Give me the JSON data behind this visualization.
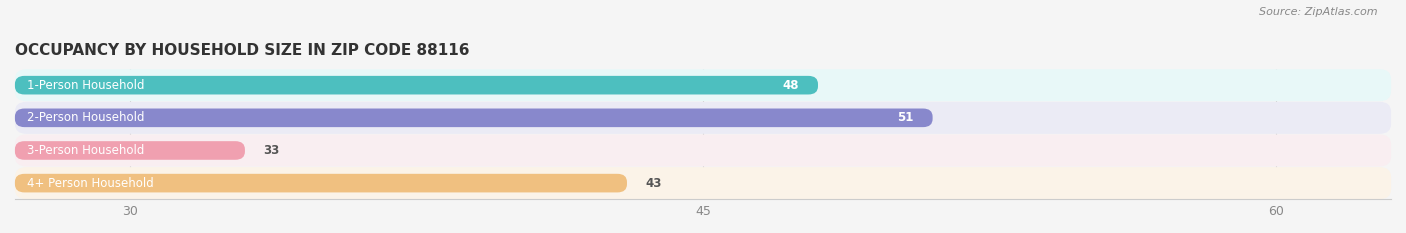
{
  "title": "OCCUPANCY BY HOUSEHOLD SIZE IN ZIP CODE 88116",
  "source": "Source: ZipAtlas.com",
  "categories": [
    "1-Person Household",
    "2-Person Household",
    "3-Person Household",
    "4+ Person Household"
  ],
  "values": [
    48,
    51,
    33,
    43
  ],
  "bar_colors": [
    "#4DBFBF",
    "#8888CC",
    "#F0A0B0",
    "#F0C080"
  ],
  "bg_colors": [
    "#E8F8F8",
    "#EBEBF5",
    "#F9EEF1",
    "#FBF3E8"
  ],
  "xlim": [
    27,
    63
  ],
  "xticks": [
    30,
    45,
    60
  ],
  "value_label_color_threshold": 40,
  "bar_height": 0.55,
  "figsize": [
    14.06,
    2.33
  ],
  "dpi": 100
}
